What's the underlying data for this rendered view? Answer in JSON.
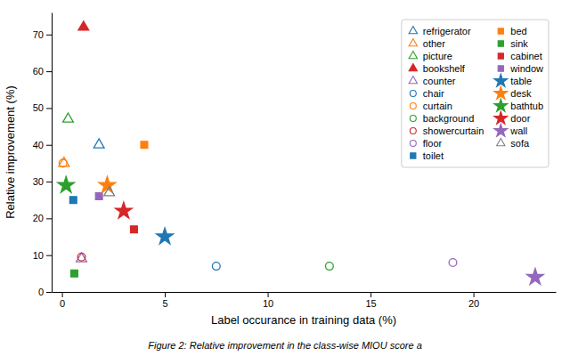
{
  "chart_data": {
    "type": "scatter",
    "xlabel": "Label occurance in training data (%)",
    "ylabel": "Relative improvement (%)",
    "caption": "Figure 2: Relative improvement in the class-wise MIOU score a",
    "xlim": [
      -0.5,
      24
    ],
    "ylim": [
      0,
      76
    ],
    "xticks": [
      0,
      5,
      10,
      15,
      20
    ],
    "yticks": [
      0,
      10,
      20,
      30,
      40,
      50,
      60,
      70
    ],
    "grid": false,
    "legend": "upper right",
    "series": [
      {
        "name": "refrigerator",
        "color": "#1f77b4",
        "marker": "triangle-open",
        "x": [
          1.8
        ],
        "values": [
          40
        ]
      },
      {
        "name": "bed",
        "color": "#ff7f0e",
        "marker": "square",
        "x": [
          4.0
        ],
        "values": [
          40
        ]
      },
      {
        "name": "other",
        "color": "#ff7f0e",
        "marker": "triangle-open",
        "x": [
          0.1
        ],
        "values": [
          35
        ]
      },
      {
        "name": "sink",
        "color": "#2ca02c",
        "marker": "square",
        "x": [
          0.6
        ],
        "values": [
          5
        ]
      },
      {
        "name": "picture",
        "color": "#2ca02c",
        "marker": "triangle-open",
        "x": [
          0.3
        ],
        "values": [
          47
        ]
      },
      {
        "name": "cabinet",
        "color": "#d62728",
        "marker": "square",
        "x": [
          3.5
        ],
        "values": [
          17
        ]
      },
      {
        "name": "bookshelf",
        "color": "#d62728",
        "marker": "triangle",
        "x": [
          1.05
        ],
        "values": [
          72
        ]
      },
      {
        "name": "window",
        "color": "#9467bd",
        "marker": "square",
        "x": [
          1.8
        ],
        "values": [
          26
        ]
      },
      {
        "name": "counter",
        "color": "#9467bd",
        "marker": "triangle-open",
        "x": [
          0.95
        ],
        "values": [
          9
        ]
      },
      {
        "name": "table",
        "color": "#1f77b4",
        "marker": "star",
        "x": [
          5.0
        ],
        "values": [
          15
        ]
      },
      {
        "name": "chair",
        "color": "#1f77b4",
        "marker": "circle-open",
        "x": [
          7.5
        ],
        "values": [
          7
        ]
      },
      {
        "name": "desk",
        "color": "#ff7f0e",
        "marker": "star",
        "x": [
          2.2
        ],
        "values": [
          29
        ]
      },
      {
        "name": "curtain",
        "color": "#ff7f0e",
        "marker": "circle-open",
        "x": [
          0.05
        ],
        "values": [
          35
        ]
      },
      {
        "name": "bathtub",
        "color": "#2ca02c",
        "marker": "star",
        "x": [
          0.2
        ],
        "values": [
          29
        ]
      },
      {
        "name": "background",
        "color": "#2ca02c",
        "marker": "circle-open",
        "x": [
          13.0
        ],
        "values": [
          7
        ]
      },
      {
        "name": "door",
        "color": "#d62728",
        "marker": "star",
        "x": [
          3.0
        ],
        "values": [
          22
        ]
      },
      {
        "name": "showercurtain",
        "color": "#d62728",
        "marker": "circle-open",
        "x": [
          0.95
        ],
        "values": [
          9.5
        ]
      },
      {
        "name": "wall",
        "color": "#9467bd",
        "marker": "star",
        "x": [
          23.0
        ],
        "values": [
          4
        ]
      },
      {
        "name": "floor",
        "color": "#9467bd",
        "marker": "circle-open",
        "x": [
          19.0
        ],
        "values": [
          8
        ]
      },
      {
        "name": "sofa",
        "color": "#7f7f7f",
        "marker": "triangle-open",
        "x": [
          2.3
        ],
        "values": [
          27
        ]
      },
      {
        "name": "toilet",
        "color": "#1f77b4",
        "marker": "square",
        "x": [
          0.55
        ],
        "values": [
          25
        ]
      }
    ]
  }
}
